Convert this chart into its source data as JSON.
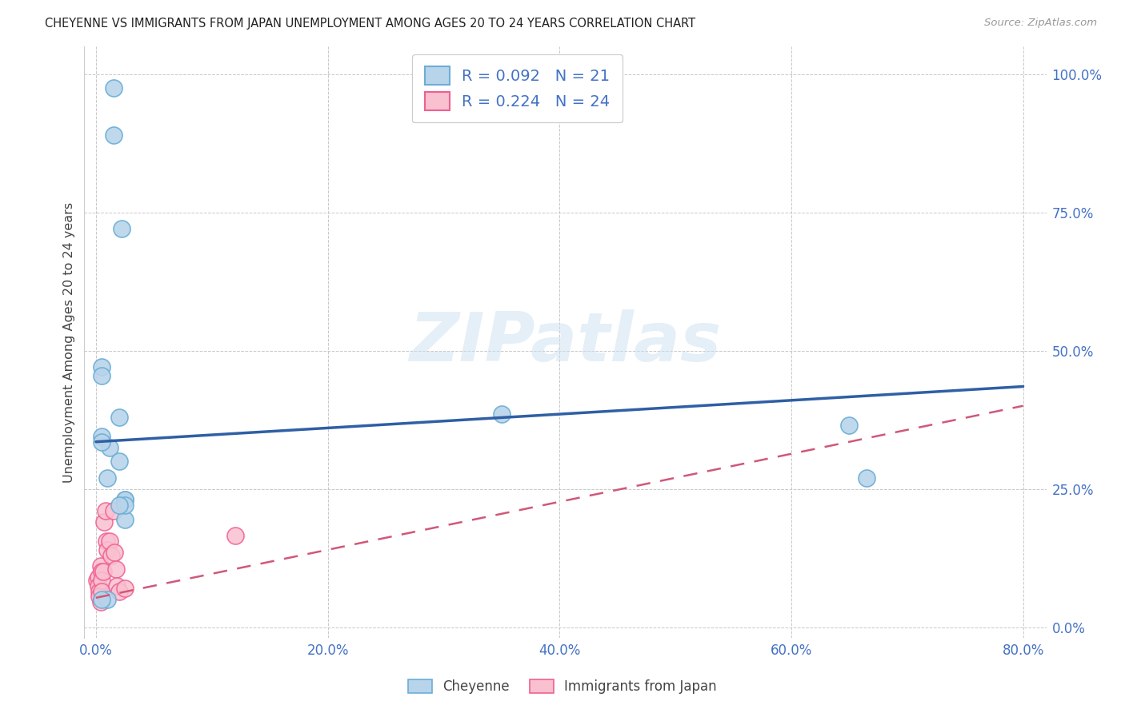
{
  "title": "CHEYENNE VS IMMIGRANTS FROM JAPAN UNEMPLOYMENT AMONG AGES 20 TO 24 YEARS CORRELATION CHART",
  "source": "Source: ZipAtlas.com",
  "ylabel": "Unemployment Among Ages 20 to 24 years",
  "xlabel_ticks": [
    "0.0%",
    "20.0%",
    "40.0%",
    "60.0%",
    "80.0%"
  ],
  "xlabel_vals": [
    0.0,
    0.2,
    0.4,
    0.6,
    0.8
  ],
  "ylabel_ticks": [
    "0.0%",
    "25.0%",
    "50.0%",
    "75.0%",
    "100.0%"
  ],
  "ylabel_vals": [
    0.0,
    0.25,
    0.5,
    0.75,
    1.0
  ],
  "xlim": [
    -0.01,
    0.82
  ],
  "ylim": [
    -0.02,
    1.05
  ],
  "cheyenne_fill": "#b8d4ea",
  "cheyenne_edge": "#6baed6",
  "japan_fill": "#f9c0d0",
  "japan_edge": "#f06090",
  "trend_blue": "#2f5fa5",
  "trend_pink": "#d05878",
  "bg_color": "#ffffff",
  "grid_color": "#c8c8c8",
  "watermark": "ZIPatlas",
  "cheyenne_x": [
    0.015,
    0.015,
    0.022,
    0.005,
    0.005,
    0.005,
    0.012,
    0.02,
    0.025,
    0.025,
    0.025,
    0.35,
    0.65,
    0.665,
    0.005,
    0.01,
    0.01,
    0.02,
    0.025,
    0.02,
    0.005
  ],
  "cheyenne_y": [
    0.975,
    0.89,
    0.72,
    0.47,
    0.455,
    0.345,
    0.325,
    0.3,
    0.23,
    0.23,
    0.195,
    0.385,
    0.365,
    0.27,
    0.335,
    0.27,
    0.05,
    0.38,
    0.22,
    0.22,
    0.05
  ],
  "japan_x": [
    0.001,
    0.002,
    0.002,
    0.003,
    0.003,
    0.004,
    0.004,
    0.005,
    0.005,
    0.005,
    0.006,
    0.007,
    0.008,
    0.009,
    0.01,
    0.012,
    0.013,
    0.015,
    0.016,
    0.017,
    0.018,
    0.02,
    0.025,
    0.12
  ],
  "japan_y": [
    0.085,
    0.09,
    0.075,
    0.065,
    0.055,
    0.11,
    0.045,
    0.1,
    0.085,
    0.065,
    0.1,
    0.19,
    0.21,
    0.155,
    0.14,
    0.155,
    0.13,
    0.21,
    0.135,
    0.105,
    0.075,
    0.065,
    0.07,
    0.165
  ],
  "cheyenne_trend_x0": 0.0,
  "cheyenne_trend_y0": 0.335,
  "cheyenne_trend_x1": 0.8,
  "cheyenne_trend_y1": 0.435,
  "japan_trend_x0": 0.0,
  "japan_trend_y0": 0.053,
  "japan_trend_x1": 0.8,
  "japan_trend_y1": 0.4
}
